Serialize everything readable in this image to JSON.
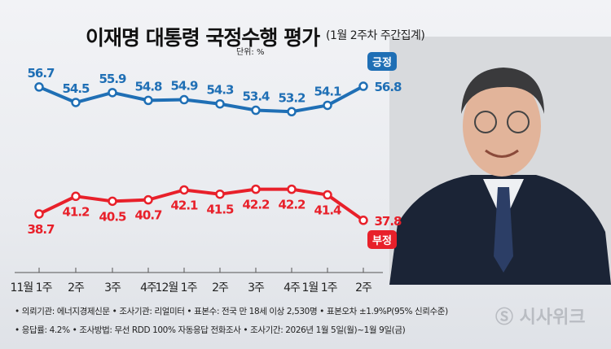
{
  "header": {
    "title": "이재명 대통령 국정수행 평가",
    "subtitle": "(1월 2주차 주간집계)",
    "unit": "단위: %"
  },
  "chart_data": {
    "type": "line",
    "categories": [
      "11월 1주",
      "2주",
      "3주",
      "4주",
      "12월 1주",
      "2주",
      "3주",
      "4주",
      "1월 1주",
      "2주"
    ],
    "series": [
      {
        "name": "긍정",
        "color": "#1f6fb5",
        "values": [
          56.7,
          54.5,
          55.9,
          54.8,
          54.9,
          54.3,
          53.4,
          53.2,
          54.1,
          56.8
        ]
      },
      {
        "name": "부정",
        "color": "#e8202a",
        "values": [
          38.7,
          41.2,
          40.5,
          40.7,
          42.1,
          41.5,
          42.2,
          42.2,
          41.4,
          37.8
        ]
      }
    ],
    "grid": false,
    "legend": "inline labels at right"
  },
  "footer": {
    "line1": "• 의뢰기관: 에너지경제신문 • 조사기관: 리얼미터 • 표본수: 전국 만 18세 이상 2,530명 • 표본오차 ±1.9%P(95% 신뢰수준)",
    "line2": "• 응답률: 4.2% • 조사방법: 무선 RDD 100% 자동응답 전화조사 • 조사기간: 2026년 1월 5일(월)~1월 9일(금)"
  },
  "logo": "시사위크"
}
